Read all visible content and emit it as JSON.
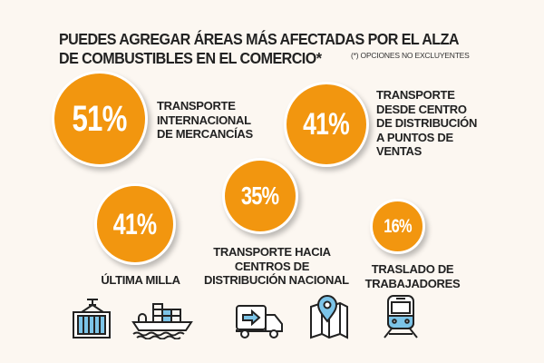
{
  "header": {
    "title_line1": "PUEDES AGREGAR ÁREAS MÁS AFECTADAS POR EL ALZA",
    "title_line2": "DE COMBUSTIBLES EN EL COMERCIO*",
    "note": "(*) OPCIONES NO EXCLUYENTES"
  },
  "items": [
    {
      "value": "51%",
      "label": [
        "TRANSPORTE",
        "INTERNACIONAL",
        "DE MERCANCÍAS"
      ]
    },
    {
      "value": "41%",
      "label": [
        "TRANSPORTE",
        "DESDE CENTRO",
        "DE DISTRIBUCIÓN",
        "A PUNTOS DE",
        "VENTAS"
      ]
    },
    {
      "value": "35%",
      "label": [
        "TRANSPORTE HACIA",
        "CENTROS DE",
        "DISTRIBUCIÓN NACIONAL"
      ]
    },
    {
      "value": "41%",
      "label": [
        "ÚLTIMA MILLA"
      ]
    },
    {
      "value": "16%",
      "label": [
        "TRASLADO DE",
        "TRABAJADORES"
      ]
    }
  ],
  "icons": [
    "container-crane-icon",
    "cargo-ship-icon",
    "delivery-truck-icon",
    "map-pin-icon",
    "train-icon"
  ],
  "colors": {
    "bubble": "#f2960f",
    "background": "#fcf7f1",
    "icon_fill": "#7cc4e8"
  }
}
